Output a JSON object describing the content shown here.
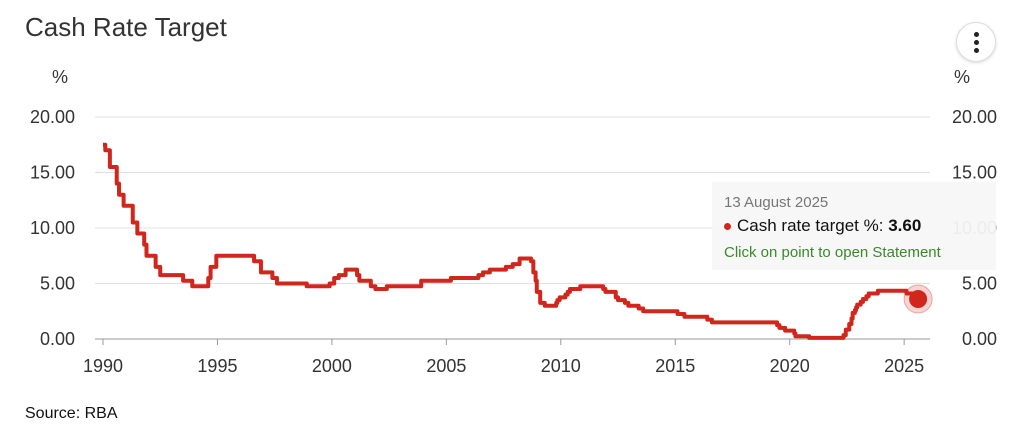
{
  "title": "Cash Rate Target",
  "source": "Source: RBA",
  "menu_icon": "more-vertical-icon",
  "colors": {
    "line": "#d0261b",
    "grid": "#e0e0e0",
    "link": "#3a8a2a"
  },
  "tooltip": {
    "date": "13 August 2025",
    "series_label": "Cash rate target %:",
    "value": "3.60",
    "link": "Click on point to open Statement"
  },
  "chart_data": {
    "type": "line",
    "title": "Cash Rate Target",
    "ylabel_left": "%",
    "ylabel_right": "%",
    "ylim": [
      0,
      20
    ],
    "yticks": [
      "0.00",
      "5.00",
      "10.00",
      "15.00",
      "20.00"
    ],
    "xlim": [
      1990,
      2026.3
    ],
    "xticks": [
      "1990",
      "1995",
      "2000",
      "2005",
      "2010",
      "2015",
      "2020",
      "2025"
    ],
    "grid": true,
    "highlight": {
      "x": 2025.61,
      "y": 3.6
    },
    "series": [
      {
        "name": "Cash rate target %",
        "step": true,
        "points": [
          [
            1990.0,
            17.5
          ],
          [
            1990.1,
            17
          ],
          [
            1990.3,
            15.5
          ],
          [
            1990.6,
            14
          ],
          [
            1990.7,
            13
          ],
          [
            1990.9,
            12
          ],
          [
            1991.3,
            10.5
          ],
          [
            1991.5,
            9.5
          ],
          [
            1991.8,
            8.5
          ],
          [
            1991.9,
            7.5
          ],
          [
            1992.3,
            6.5
          ],
          [
            1992.5,
            5.75
          ],
          [
            1993.5,
            5.25
          ],
          [
            1993.9,
            4.75
          ],
          [
            1994.6,
            5.5
          ],
          [
            1994.7,
            6.5
          ],
          [
            1994.95,
            7.5
          ],
          [
            1996.6,
            7.0
          ],
          [
            1996.9,
            6.0
          ],
          [
            1997.4,
            5.5
          ],
          [
            1997.6,
            5.0
          ],
          [
            1998.9,
            4.75
          ],
          [
            1999.9,
            5.0
          ],
          [
            2000.1,
            5.5
          ],
          [
            2000.3,
            5.75
          ],
          [
            2000.6,
            6.25
          ],
          [
            2001.1,
            5.75
          ],
          [
            2001.2,
            5.25
          ],
          [
            2001.7,
            4.75
          ],
          [
            2001.9,
            4.5
          ],
          [
            2002.4,
            4.75
          ],
          [
            2003.9,
            5.25
          ],
          [
            2005.2,
            5.5
          ],
          [
            2006.4,
            5.75
          ],
          [
            2006.6,
            6.0
          ],
          [
            2006.9,
            6.25
          ],
          [
            2007.6,
            6.5
          ],
          [
            2007.9,
            6.75
          ],
          [
            2008.2,
            7.25
          ],
          [
            2008.7,
            7.0
          ],
          [
            2008.8,
            6.0
          ],
          [
            2008.9,
            5.25
          ],
          [
            2008.95,
            4.25
          ],
          [
            2009.1,
            3.25
          ],
          [
            2009.3,
            3.0
          ],
          [
            2009.8,
            3.25
          ],
          [
            2009.85,
            3.5
          ],
          [
            2009.95,
            3.75
          ],
          [
            2010.2,
            4.0
          ],
          [
            2010.3,
            4.25
          ],
          [
            2010.4,
            4.5
          ],
          [
            2010.85,
            4.75
          ],
          [
            2011.85,
            4.5
          ],
          [
            2011.95,
            4.25
          ],
          [
            2012.4,
            3.75
          ],
          [
            2012.5,
            3.5
          ],
          [
            2012.8,
            3.25
          ],
          [
            2012.95,
            3.0
          ],
          [
            2013.4,
            2.75
          ],
          [
            2013.6,
            2.5
          ],
          [
            2015.1,
            2.25
          ],
          [
            2015.4,
            2.0
          ],
          [
            2016.4,
            1.75
          ],
          [
            2016.6,
            1.5
          ],
          [
            2019.45,
            1.25
          ],
          [
            2019.55,
            1.0
          ],
          [
            2019.8,
            0.75
          ],
          [
            2020.2,
            0.5
          ],
          [
            2020.25,
            0.25
          ],
          [
            2020.85,
            0.1
          ],
          [
            2022.35,
            0.35
          ],
          [
            2022.45,
            0.85
          ],
          [
            2022.6,
            1.35
          ],
          [
            2022.7,
            1.85
          ],
          [
            2022.75,
            2.35
          ],
          [
            2022.85,
            2.6
          ],
          [
            2022.9,
            2.85
          ],
          [
            2022.95,
            3.1
          ],
          [
            2023.1,
            3.35
          ],
          [
            2023.2,
            3.6
          ],
          [
            2023.35,
            3.85
          ],
          [
            2023.45,
            4.1
          ],
          [
            2023.85,
            4.35
          ],
          [
            2025.1,
            4.1
          ],
          [
            2025.4,
            3.85
          ],
          [
            2025.61,
            3.6
          ]
        ]
      }
    ]
  }
}
